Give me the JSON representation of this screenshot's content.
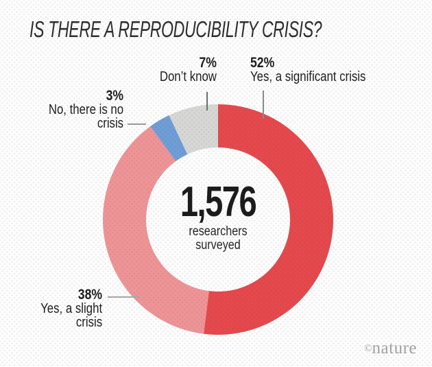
{
  "title": "IS THERE A REPRODUCIBILITY CRISIS?",
  "chart_data": {
    "type": "pie",
    "variant": "donut",
    "title": "IS THERE A REPRODUCIBILITY CRISIS?",
    "start_angle_deg": 0,
    "clockwise": true,
    "center": {
      "value": "1,576",
      "label_line1": "researchers",
      "label_line2": "surveyed"
    },
    "segments": [
      {
        "id": "significant",
        "label": "Yes, a significant crisis",
        "pct_label": "52%",
        "value": 52,
        "color": "#e5494d"
      },
      {
        "id": "slight",
        "label": "Yes, a slight crisis",
        "pct_label": "38%",
        "value": 38,
        "color": "#ee9497"
      },
      {
        "id": "no-crisis",
        "label": "No, there is no crisis",
        "pct_label": "3%",
        "value": 3,
        "color": "#6f9ed7"
      },
      {
        "id": "dont-know",
        "label": "Don’t know",
        "pct_label": "7%",
        "value": 7,
        "color": "#d7d7d5"
      }
    ]
  },
  "callouts": {
    "significant": {
      "pct": "52%",
      "line1": "Yes, a significant crisis"
    },
    "dont_know": {
      "pct": "7%",
      "line1": "Don’t know"
    },
    "no_crisis": {
      "pct": "3%",
      "line1": "No, there is no",
      "line2": "crisis"
    },
    "slight": {
      "pct": "38%",
      "line1": "Yes, a slight",
      "line2": "crisis"
    }
  },
  "branding": {
    "copyright": "©",
    "name": "nature"
  }
}
